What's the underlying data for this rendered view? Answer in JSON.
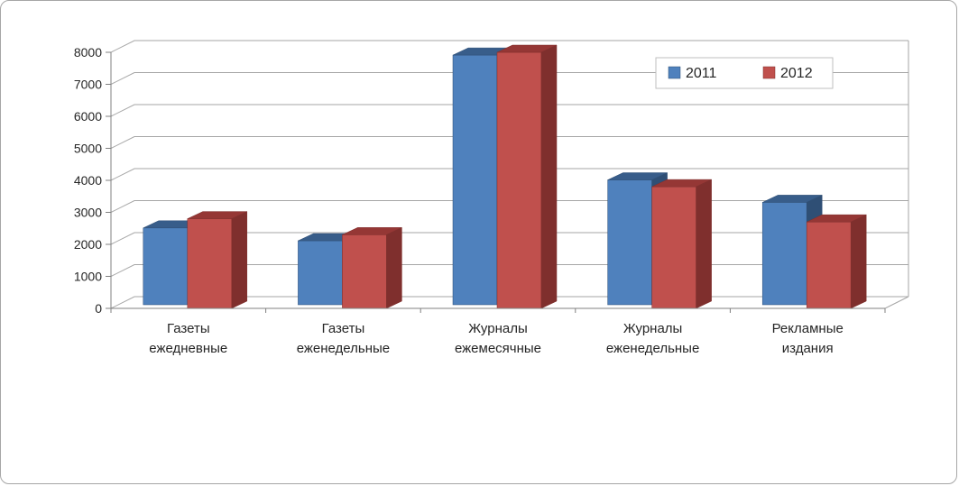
{
  "frame": {
    "background": "#FFFFFF",
    "border_color": "#A6A6A6"
  },
  "chart_data": {
    "type": "bar",
    "style": "3d-clustered-column",
    "title": "",
    "xlabel": "",
    "ylabel": "",
    "categories": [
      [
        "Газеты",
        "ежедневные"
      ],
      [
        "Газеты",
        "еженедельные"
      ],
      [
        "Журналы",
        "ежемесячные"
      ],
      [
        "Журналы",
        "еженедельные"
      ],
      [
        "Рекламные",
        "издания"
      ]
    ],
    "series": [
      {
        "name": "2011",
        "color": "#4F81BD",
        "color_top": "#385D8A",
        "color_side": "#2F4F75",
        "values": [
          2400,
          2000,
          7800,
          3900,
          3200
        ]
      },
      {
        "name": "2012",
        "color": "#C0504D",
        "color_top": "#953735",
        "color_side": "#7F2F2D",
        "values": [
          2800,
          2300,
          8000,
          3800,
          2700
        ]
      }
    ],
    "ylim": [
      0,
      8000
    ],
    "ytick_step": 1000,
    "ytick_labels": [
      "0",
      "1000",
      "2000",
      "3000",
      "4000",
      "5000",
      "6000",
      "7000",
      "8000"
    ],
    "grid": true,
    "legend_position": "top-right",
    "grid_color": "#A6A6A6",
    "axis_color": "#808080",
    "text_color": "#262626"
  }
}
